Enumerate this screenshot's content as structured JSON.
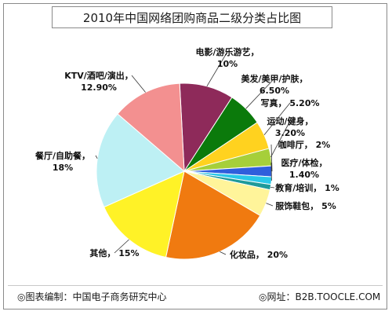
{
  "chart_data": {
    "type": "pie",
    "title": "2010年中国网络团购商品二级分类占比图",
    "slices": [
      {
        "label": "电影/游乐游艺，",
        "value_label": "10%",
        "value": 10,
        "color": "#8e2a5a"
      },
      {
        "label": "美发/美甲/护肤，",
        "value_label": "6.50%",
        "value": 6.5,
        "color": "#0b7a0b"
      },
      {
        "label": "写真，",
        "value_label": "5.20%",
        "value": 5.2,
        "color": "#ffd21f"
      },
      {
        "label": "运动/健身，",
        "value_label": "3.20%",
        "value": 3.2,
        "color": "#a6cf3a"
      },
      {
        "label": "咖啡厅，",
        "value_label": "2%",
        "value": 2,
        "color": "#2f5fdc"
      },
      {
        "label": "医疗/体检，",
        "value_label": "1.40%",
        "value": 1.4,
        "color": "#29c8e8"
      },
      {
        "label": "教育/培训，",
        "value_label": "1%",
        "value": 1,
        "color": "#1e9a9a"
      },
      {
        "label": "服饰鞋包，",
        "value_label": "5%",
        "value": 5,
        "color": "#fff49a"
      },
      {
        "label": "化妆品，",
        "value_label": "20%",
        "value": 20,
        "color": "#f07a10"
      },
      {
        "label": "其他，",
        "value_label": "15%",
        "value": 15,
        "color": "#fff227"
      },
      {
        "label": "餐厅/自助餐，",
        "value_label": "18%",
        "value": 18,
        "color": "#bdf0f4"
      },
      {
        "label": "KTV/酒吧/演出，",
        "value_label": "12.90%",
        "value": 12.9,
        "color": "#f39090"
      }
    ]
  },
  "footer": {
    "left": "◎图表编制：中国电子商务研究中心",
    "right": "◎网址：B2B.TOOCLE.COM"
  }
}
